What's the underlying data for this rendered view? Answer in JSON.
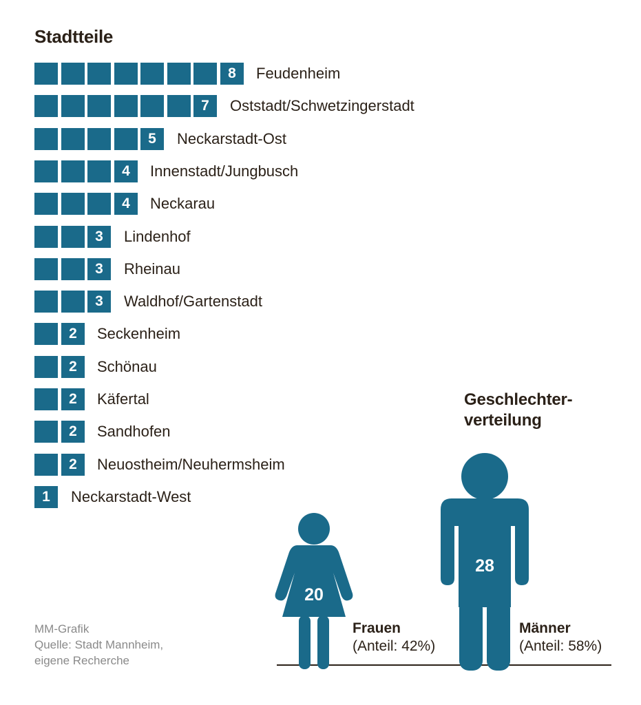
{
  "chart_data": [
    {
      "type": "bar",
      "title": "Stadtteile",
      "categories": [
        "Feudenheim",
        "Oststadt/Schwetzingerstadt",
        "Neckarstadt-Ost",
        "Innenstadt/Jungbusch",
        "Neckarau",
        "Lindenhof",
        "Rheinau",
        "Waldhof/Gartenstadt",
        "Seckenheim",
        "Schönau",
        "Käfertal",
        "Sandhofen",
        "Neuostheim/Neuhermsheim",
        "Neckarstadt-West"
      ],
      "values": [
        8,
        7,
        5,
        4,
        4,
        3,
        3,
        3,
        2,
        2,
        2,
        2,
        2,
        1
      ],
      "value_labels": [
        "8",
        "7",
        "5",
        "4",
        "4",
        "3",
        "3",
        "3",
        "2",
        "2",
        "2",
        "2",
        "2",
        "1"
      ],
      "orientation": "horizontal"
    },
    {
      "type": "pictogram",
      "title_line1": "Geschlechter-",
      "title_line2": "verteilung",
      "groups": [
        {
          "name": "Frauen",
          "value": 20,
          "value_label": "20",
          "share": "(Anteil: 42%)"
        },
        {
          "name": "Männer",
          "value": 28,
          "value_label": "28",
          "share": "(Anteil: 58%)"
        }
      ]
    }
  ],
  "colors": {
    "bar": "#1a6a8a",
    "text": "#2b2118",
    "source": "#8a8a8a"
  },
  "source": {
    "line1": "MM-Grafik",
    "line2": "Quelle: Stadt Mannheim,",
    "line3": "eigene Recherche"
  }
}
